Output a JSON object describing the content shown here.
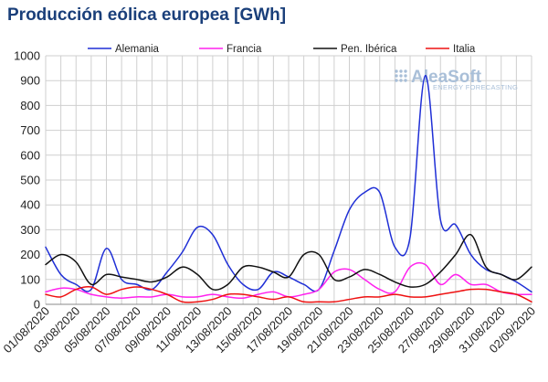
{
  "chart_data": {
    "type": "line",
    "title": "Producción eólica europea [GWh]",
    "xlabel": "",
    "ylabel": "",
    "ylim": [
      0,
      1000
    ],
    "yticks": [
      0,
      100,
      200,
      300,
      400,
      500,
      600,
      700,
      800,
      900,
      1000
    ],
    "grid": true,
    "legend_position": "top",
    "x": [
      "01/08/2020",
      "02/08/2020",
      "03/08/2020",
      "04/08/2020",
      "05/08/2020",
      "06/08/2020",
      "07/08/2020",
      "08/08/2020",
      "09/08/2020",
      "10/08/2020",
      "11/08/2020",
      "12/08/2020",
      "13/08/2020",
      "14/08/2020",
      "15/08/2020",
      "16/08/2020",
      "17/08/2020",
      "18/08/2020",
      "19/08/2020",
      "20/08/2020",
      "21/08/2020",
      "22/08/2020",
      "23/08/2020",
      "24/08/2020",
      "25/08/2020",
      "26/08/2020",
      "27/08/2020",
      "28/08/2020",
      "29/08/2020",
      "30/08/2020",
      "31/08/2020",
      "01/09/2020",
      "02/09/2020"
    ],
    "xtick_labels": [
      "01/08/2020",
      "03/08/2020",
      "05/08/2020",
      "07/08/2020",
      "09/08/2020",
      "11/08/2020",
      "13/08/2020",
      "15/08/2020",
      "17/08/2020",
      "19/08/2020",
      "21/08/2020",
      "23/08/2020",
      "25/08/2020",
      "27/08/2020",
      "29/08/2020",
      "31/08/2020",
      "02/09/2020"
    ],
    "series": [
      {
        "name": "Alemania",
        "color": "#1f2fd6",
        "values": [
          230,
          120,
          80,
          60,
          225,
          100,
          80,
          60,
          130,
          210,
          310,
          280,
          160,
          80,
          60,
          130,
          110,
          80,
          60,
          215,
          380,
          450,
          450,
          230,
          270,
          920,
          340,
          320,
          200,
          140,
          120,
          90,
          50
        ]
      },
      {
        "name": "Francia",
        "color": "#ff22ee",
        "values": [
          50,
          65,
          60,
          40,
          30,
          25,
          30,
          30,
          40,
          30,
          30,
          40,
          30,
          25,
          40,
          50,
          30,
          40,
          60,
          130,
          140,
          100,
          60,
          50,
          150,
          160,
          80,
          120,
          80,
          80,
          50,
          40,
          40
        ]
      },
      {
        "name": "Pen. Ibérica",
        "color": "#111111",
        "values": [
          160,
          200,
          170,
          80,
          120,
          110,
          100,
          90,
          110,
          150,
          120,
          60,
          80,
          150,
          150,
          130,
          110,
          200,
          200,
          100,
          110,
          140,
          120,
          90,
          70,
          80,
          130,
          200,
          280,
          150,
          120,
          100,
          150
        ]
      },
      {
        "name": "Italia",
        "color": "#ee1111",
        "values": [
          40,
          30,
          60,
          70,
          40,
          60,
          70,
          60,
          40,
          10,
          10,
          20,
          40,
          40,
          30,
          20,
          30,
          10,
          10,
          10,
          20,
          30,
          30,
          40,
          30,
          30,
          40,
          50,
          60,
          60,
          50,
          40,
          10
        ]
      }
    ]
  },
  "brand": {
    "name": "AleaSoft",
    "tagline": "ENERGY FORECASTING"
  }
}
